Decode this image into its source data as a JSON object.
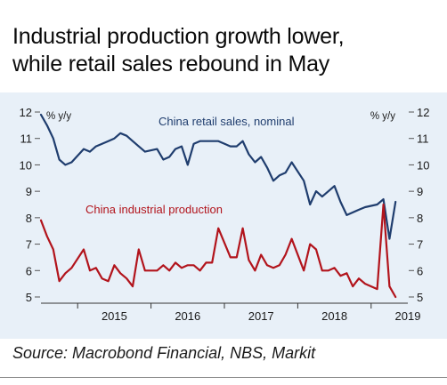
{
  "title_line1": "Industrial production growth lower,",
  "title_line2": "while retail sales rebound in May",
  "source": "Source: Macrobond Financial, NBS, Markit",
  "chart_data": {
    "type": "line",
    "ylim": [
      5,
      12
    ],
    "yticks": [
      5,
      6,
      7,
      8,
      9,
      10,
      11,
      12
    ],
    "y_unit_left": "% y/y",
    "y_unit_right": "% y/y",
    "xlim": [
      2014.5,
      2019.5
    ],
    "x_ticks": [
      "2015",
      "2016",
      "2017",
      "2018",
      "2019"
    ],
    "series": [
      {
        "name": "China retail sales, nominal",
        "color": "#1f3d6e",
        "x": [
          2014.5,
          2014.583,
          2014.667,
          2014.75,
          2014.833,
          2014.917,
          2015.083,
          2015.167,
          2015.25,
          2015.333,
          2015.417,
          2015.5,
          2015.583,
          2015.667,
          2015.75,
          2015.833,
          2015.917,
          2016.083,
          2016.167,
          2016.25,
          2016.333,
          2016.417,
          2016.5,
          2016.583,
          2016.667,
          2016.75,
          2016.833,
          2016.917,
          2017.083,
          2017.167,
          2017.25,
          2017.333,
          2017.417,
          2017.5,
          2017.583,
          2017.667,
          2017.75,
          2017.833,
          2017.917,
          2018.083,
          2018.167,
          2018.25,
          2018.333,
          2018.417,
          2018.5,
          2018.583,
          2018.667,
          2018.75,
          2018.833,
          2018.917,
          2019.083,
          2019.167,
          2019.25,
          2019.333
        ],
        "y": [
          11.9,
          11.5,
          11.0,
          10.2,
          10.0,
          10.1,
          10.6,
          10.5,
          10.7,
          10.8,
          10.9,
          11.0,
          11.2,
          11.1,
          10.9,
          10.7,
          10.5,
          10.6,
          10.2,
          10.3,
          10.6,
          10.7,
          10.0,
          10.8,
          10.9,
          10.9,
          10.9,
          10.9,
          10.7,
          10.7,
          10.9,
          10.4,
          10.1,
          10.3,
          9.9,
          9.4,
          9.6,
          9.7,
          10.1,
          9.4,
          8.5,
          9.0,
          8.8,
          9.0,
          9.2,
          8.6,
          8.1,
          8.2,
          8.3,
          8.4,
          8.5,
          8.7,
          7.2,
          8.6
        ]
      },
      {
        "name": "China industrial production",
        "color": "#b2141c",
        "x": [
          2014.5,
          2014.583,
          2014.667,
          2014.75,
          2014.833,
          2014.917,
          2015.083,
          2015.167,
          2015.25,
          2015.333,
          2015.417,
          2015.5,
          2015.583,
          2015.667,
          2015.75,
          2015.833,
          2015.917,
          2016.083,
          2016.167,
          2016.25,
          2016.333,
          2016.417,
          2016.5,
          2016.583,
          2016.667,
          2016.75,
          2016.833,
          2016.917,
          2017.083,
          2017.167,
          2017.25,
          2017.333,
          2017.417,
          2017.5,
          2017.583,
          2017.667,
          2017.75,
          2017.833,
          2017.917,
          2018.083,
          2018.167,
          2018.25,
          2018.333,
          2018.417,
          2018.5,
          2018.583,
          2018.667,
          2018.75,
          2018.833,
          2018.917,
          2019.083,
          2019.167,
          2019.25,
          2019.333
        ],
        "y": [
          7.9,
          7.3,
          6.8,
          5.6,
          5.9,
          6.1,
          6.8,
          6.0,
          6.1,
          5.7,
          5.6,
          6.2,
          5.9,
          5.7,
          5.4,
          6.8,
          6.0,
          6.0,
          6.2,
          6.0,
          6.3,
          6.1,
          6.2,
          6.2,
          6.0,
          6.3,
          6.3,
          7.6,
          6.5,
          6.5,
          7.6,
          6.4,
          6.0,
          6.6,
          6.2,
          6.1,
          6.2,
          6.6,
          7.2,
          6.0,
          7.0,
          6.8,
          6.0,
          6.0,
          6.1,
          5.8,
          5.9,
          5.4,
          5.7,
          5.5,
          5.3,
          8.5,
          5.4,
          5.0
        ]
      }
    ]
  }
}
